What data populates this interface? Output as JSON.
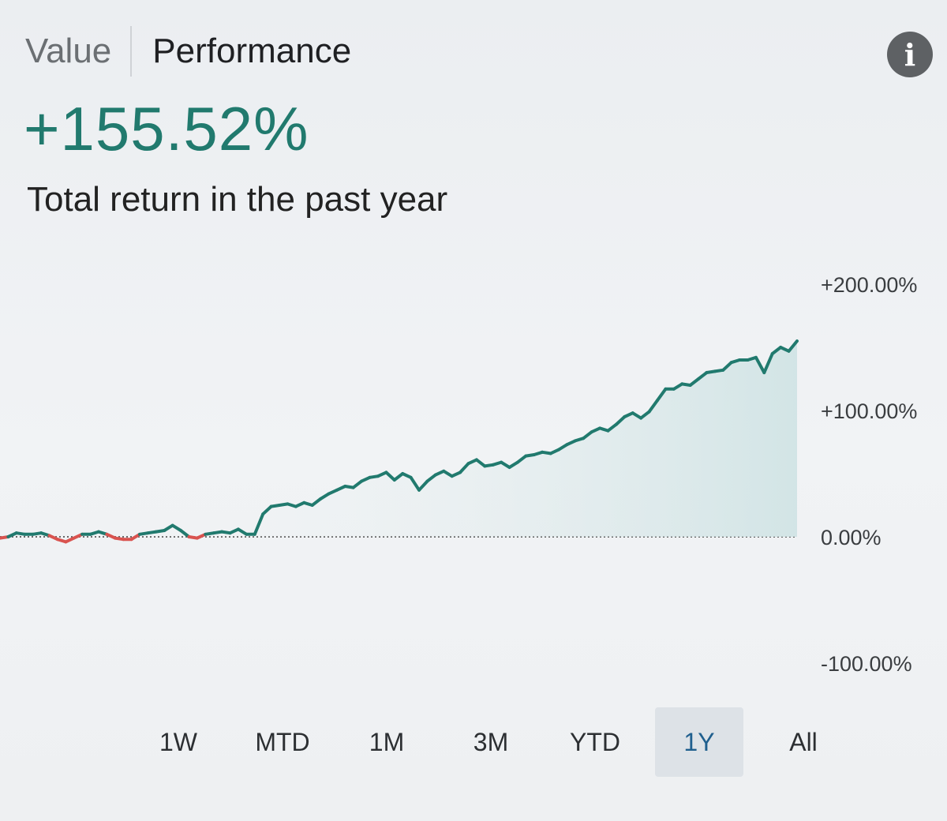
{
  "tabs": [
    {
      "label": "Value",
      "active": false
    },
    {
      "label": "Performance",
      "active": true
    }
  ],
  "info_icon": "info-icon",
  "summary": {
    "total_return": "+155.52%",
    "caption": "Total return in the past year"
  },
  "colors": {
    "positive": "#217a6e",
    "negative": "#d9534f",
    "active_range_bg": "#dde2e7",
    "active_range_text": "#1f5f8e"
  },
  "ranges": [
    {
      "label": "1W",
      "active": false
    },
    {
      "label": "MTD",
      "active": false
    },
    {
      "label": "1M",
      "active": false
    },
    {
      "label": "3M",
      "active": false
    },
    {
      "label": "YTD",
      "active": false
    },
    {
      "label": "1Y",
      "active": true
    },
    {
      "label": "All",
      "active": false
    }
  ],
  "chart_data": {
    "type": "line",
    "ylim": [
      -100,
      200
    ],
    "yticks": [
      {
        "value": 200,
        "label": "+200.00%"
      },
      {
        "value": 100,
        "label": "+100.00%"
      },
      {
        "value": 0,
        "label": "0.00%"
      },
      {
        "value": -100,
        "label": "-100.00%"
      }
    ],
    "baseline": 0,
    "series": [
      {
        "values": [
          -1,
          0,
          3,
          2,
          2,
          3,
          1,
          -2,
          -4,
          -1,
          2,
          2,
          4,
          2,
          -1,
          -2,
          -2,
          2,
          3,
          4,
          5,
          9,
          5,
          0,
          -1,
          2,
          3,
          4,
          3,
          6,
          2,
          2,
          18,
          24,
          25,
          26,
          24,
          27,
          25,
          30,
          34,
          37,
          40,
          39,
          44,
          47,
          48,
          51,
          45,
          50,
          47,
          37,
          44,
          49,
          52,
          48,
          51,
          58,
          61,
          56,
          57,
          59,
          55,
          59,
          64,
          65,
          67,
          66,
          69,
          73,
          76,
          78,
          83,
          86,
          84,
          89,
          95,
          98,
          94,
          99,
          108,
          117,
          117,
          121,
          120,
          125,
          130,
          131,
          132,
          138,
          140,
          140,
          142,
          130,
          145,
          150,
          147,
          155
        ]
      }
    ]
  }
}
